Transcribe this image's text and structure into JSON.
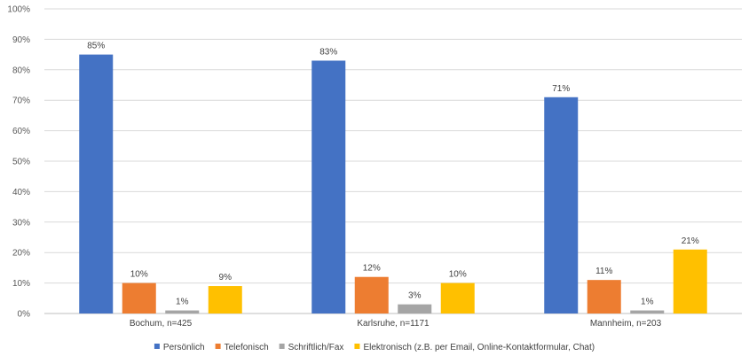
{
  "chart_data": {
    "type": "bar",
    "title": "",
    "xlabel": "",
    "ylabel": "",
    "ylim": [
      0,
      100
    ],
    "y_ticks": [
      "0%",
      "10%",
      "20%",
      "30%",
      "40%",
      "50%",
      "60%",
      "70%",
      "80%",
      "90%",
      "100%"
    ],
    "grid": true,
    "legend_position": "bottom",
    "categories": [
      "Bochum, n=425",
      "Karlsruhe, n=1171",
      "Mannheim, n=203"
    ],
    "series": [
      {
        "name": "Persönlich",
        "color": "#4472C4",
        "values": [
          85,
          83,
          71
        ],
        "labels": [
          "85%",
          "83%",
          "71%"
        ]
      },
      {
        "name": "Telefonisch",
        "color": "#ED7D31",
        "values": [
          10,
          12,
          11
        ],
        "labels": [
          "10%",
          "12%",
          "11%"
        ]
      },
      {
        "name": "Schriftlich/Fax",
        "color": "#A5A5A5",
        "values": [
          1,
          3,
          1
        ],
        "labels": [
          "1%",
          "3%",
          "1%"
        ]
      },
      {
        "name": "Elektronisch (z.B. per Email, Online-Kontaktformular, Chat)",
        "color": "#FFC000",
        "values": [
          9,
          10,
          21
        ],
        "labels": [
          "9%",
          "10%",
          "21%"
        ]
      }
    ]
  }
}
